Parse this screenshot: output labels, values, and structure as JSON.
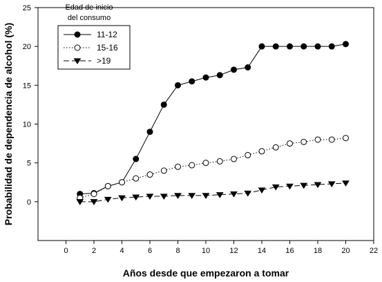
{
  "chart_data": {
    "type": "line",
    "xlabel": "Años desde que empezaron a tomar",
    "ylabel": "Probabilidad de dependencia de alcohol (%)",
    "xlim": [
      -2,
      22
    ],
    "ylim": [
      -5,
      25
    ],
    "xticks": [
      0,
      2,
      4,
      6,
      8,
      10,
      12,
      14,
      16,
      18,
      20,
      22
    ],
    "yticks": [
      0,
      5,
      10,
      15,
      20,
      25
    ],
    "grid": false,
    "legend": {
      "title_line1": "Edad de inicio",
      "title_line2": "del consumo",
      "placement": "top-left"
    },
    "series": [
      {
        "name": "11-12",
        "marker": "filled-circle",
        "line_style": "solid",
        "x": [
          1,
          2,
          3,
          4,
          5,
          6,
          7,
          8,
          9,
          10,
          11,
          12,
          13,
          14,
          15,
          16,
          17,
          18,
          19,
          20
        ],
        "y": [
          1.0,
          1.1,
          2.0,
          2.5,
          5.5,
          9.0,
          12.5,
          15.0,
          15.5,
          16.0,
          16.3,
          17.0,
          17.3,
          20.0,
          20.0,
          20.0,
          20.0,
          20.0,
          20.0,
          20.3
        ]
      },
      {
        "name": "15-16",
        "marker": "open-circle",
        "line_style": "dotted",
        "x": [
          1,
          2,
          3,
          4,
          5,
          6,
          7,
          8,
          9,
          10,
          11,
          12,
          13,
          14,
          15,
          16,
          17,
          18,
          19,
          20
        ],
        "y": [
          0.5,
          1.0,
          2.0,
          2.5,
          3.0,
          3.5,
          4.0,
          4.5,
          4.7,
          5.0,
          5.2,
          5.5,
          6.0,
          6.5,
          7.0,
          7.5,
          7.7,
          8.0,
          8.0,
          8.2
        ]
      },
      {
        "name": ">19",
        "marker": "filled-triangle-down",
        "line_style": "dashed",
        "x": [
          1,
          2,
          3,
          4,
          5,
          6,
          7,
          8,
          9,
          10,
          11,
          12,
          13,
          14,
          15,
          16,
          17,
          18,
          19,
          20
        ],
        "y": [
          0.0,
          0.0,
          0.3,
          0.5,
          0.6,
          0.7,
          0.7,
          0.8,
          0.8,
          0.8,
          0.9,
          1.0,
          1.1,
          1.5,
          1.9,
          2.0,
          2.1,
          2.2,
          2.3,
          2.4
        ]
      }
    ]
  }
}
